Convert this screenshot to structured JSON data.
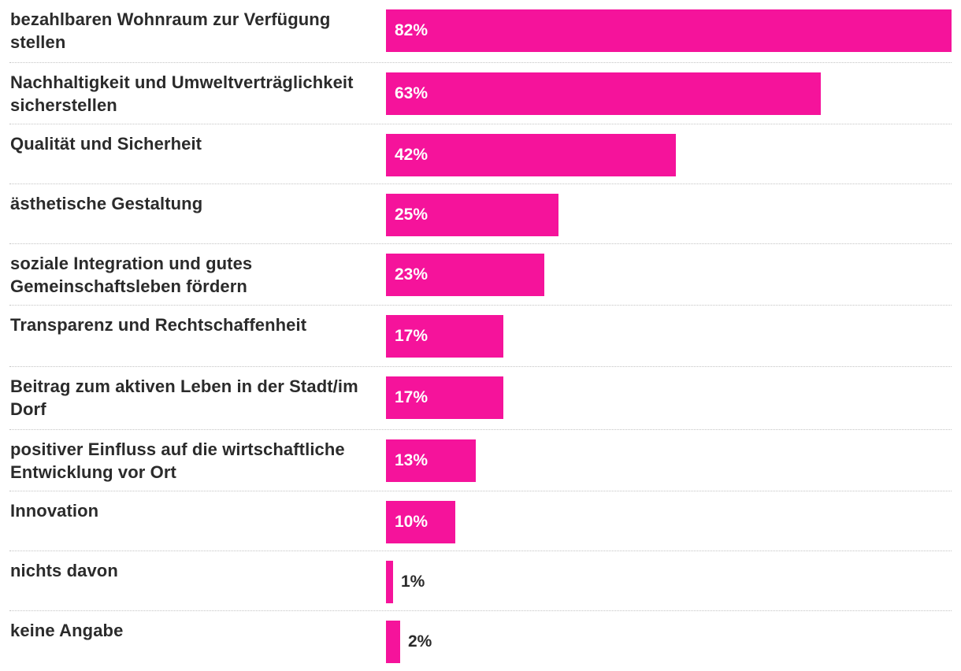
{
  "chart_data": {
    "type": "bar",
    "orientation": "horizontal",
    "title": "",
    "xlabel": "",
    "ylabel": "",
    "unit": "%",
    "xlim": [
      0,
      82
    ],
    "bar_color": "#f5139b",
    "categories": [
      "bezahlbaren Wohnraum zur Verfügung stellen",
      "Nachhaltigkeit und Umweltverträglichkeit sicherstellen",
      "Qualität und Sicherheit",
      "ästhetische Gestaltung",
      "soziale Integration und gutes Gemeinschaftsleben fördern",
      "Transparenz und Rechtschaffenheit",
      "Beitrag zum aktiven Leben in der Stadt/im Dorf",
      "positiver Einfluss auf die wirtschaftliche Entwicklung vor Ort",
      "Innovation",
      "nichts davon",
      "keine Angabe"
    ],
    "values": [
      82,
      63,
      42,
      25,
      23,
      17,
      17,
      13,
      10,
      1,
      2
    ],
    "value_labels": [
      "82%",
      "63%",
      "42%",
      "25%",
      "23%",
      "17%",
      "17%",
      "13%",
      "10%",
      "1%",
      "2%"
    ]
  }
}
